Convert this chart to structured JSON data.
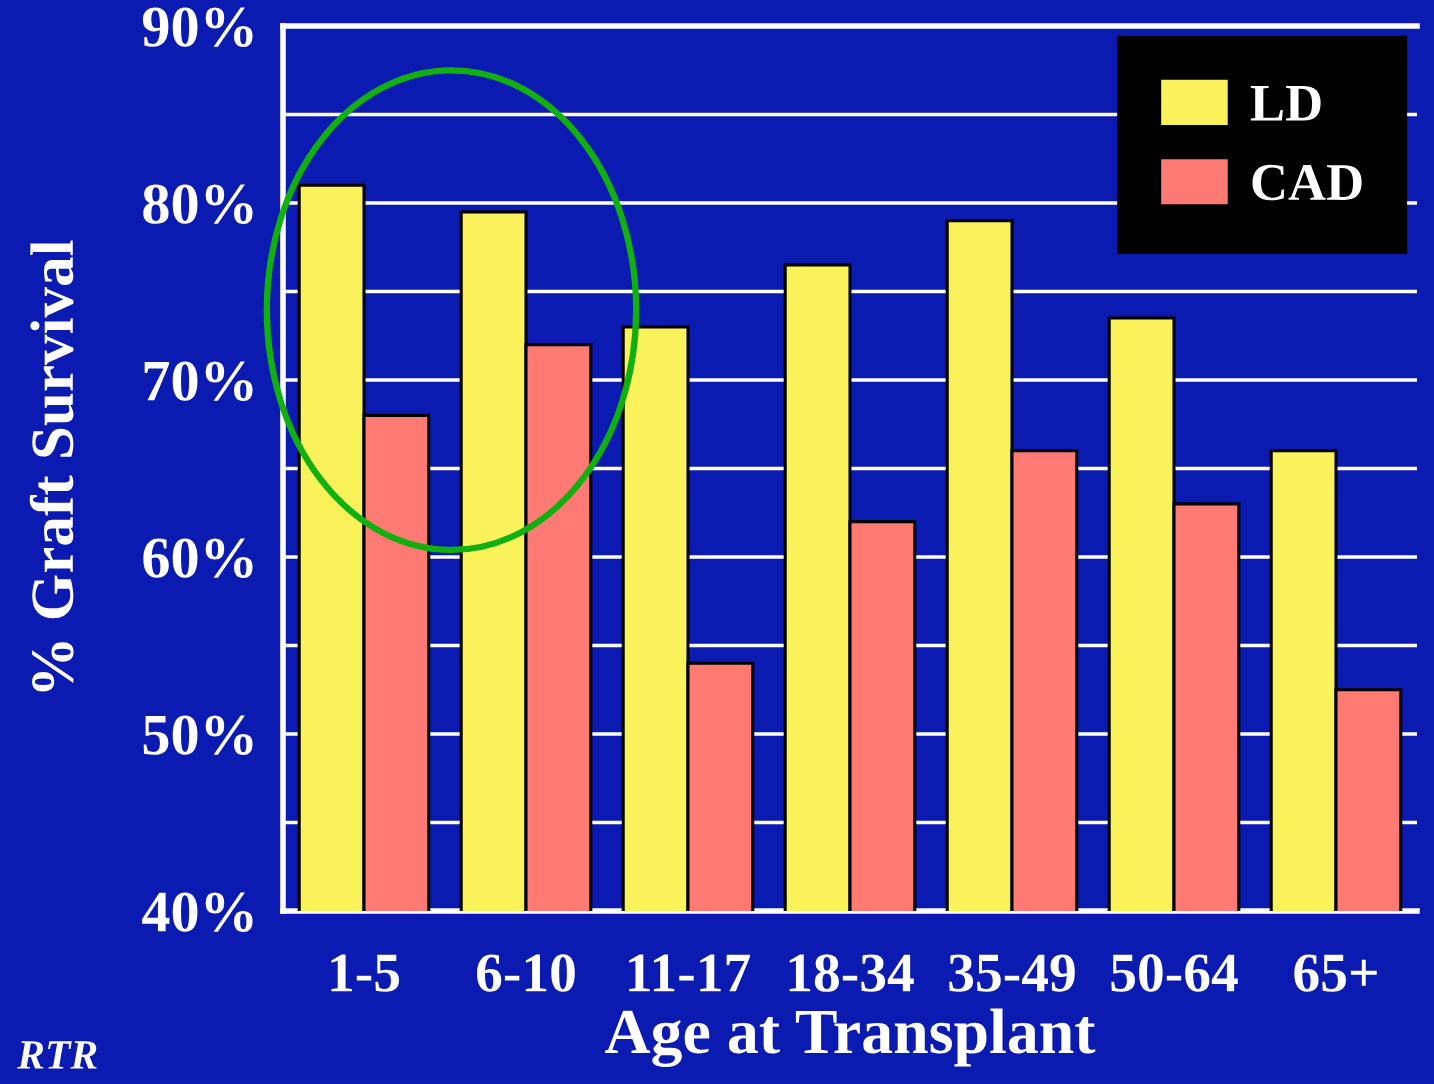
{
  "chart_data": {
    "type": "bar",
    "categories": [
      "1-5",
      "6-10",
      "11-17",
      "18-34",
      "35-49",
      "50-64",
      "65+"
    ],
    "series": [
      {
        "name": "LD",
        "color": "#f9f25a",
        "values": [
          81,
          79.5,
          73,
          76.5,
          79,
          73.5,
          66
        ]
      },
      {
        "name": "CAD",
        "color": "#ff7a72",
        "values": [
          68,
          72,
          54,
          62,
          66,
          63,
          52.5
        ]
      }
    ],
    "xlabel": "Age at Transplant",
    "ylabel": "% Graft Survival",
    "ylim": [
      40,
      90
    ],
    "yticks": [
      {
        "value": 40,
        "label": "40%"
      },
      {
        "value": 45,
        "label": null
      },
      {
        "value": 50,
        "label": "50%"
      },
      {
        "value": 55,
        "label": null
      },
      {
        "value": 60,
        "label": "60%"
      },
      {
        "value": 65,
        "label": null
      },
      {
        "value": 70,
        "label": "70%"
      },
      {
        "value": 75,
        "label": null
      },
      {
        "value": 80,
        "label": "80%"
      },
      {
        "value": 85,
        "label": null
      },
      {
        "value": 90,
        "label": "90%"
      }
    ],
    "grid": "y",
    "legend": "top right",
    "annotations": [
      "RTR"
    ]
  }
}
